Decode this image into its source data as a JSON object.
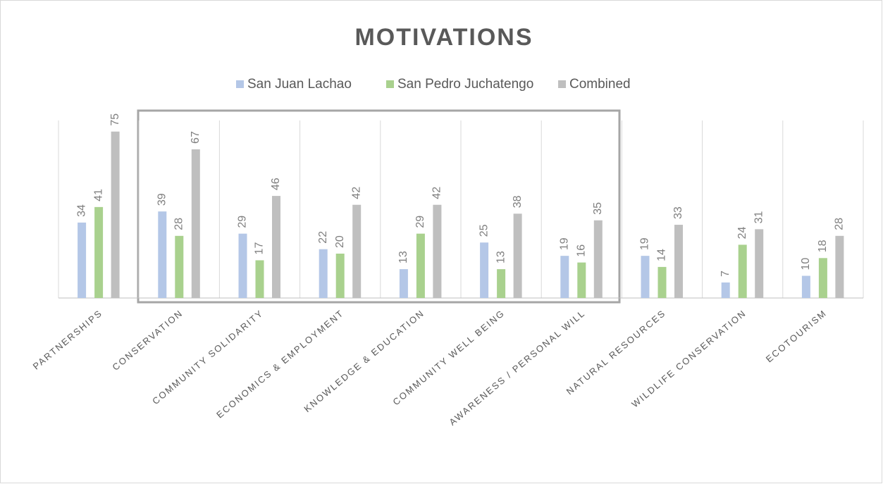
{
  "chart_data": {
    "type": "bar",
    "title": "MOTIVATIONS",
    "categories": [
      "PARTNERSHIPS",
      "CONSERVATION",
      "COMMUNITY SOLIDARITY",
      "ECONOMICS & EMPLOYMENT",
      "KNOWLEDGE & EDUCATION",
      "COMMUNITY WELL BEING",
      "AWARENESS / PERSONAL WILL",
      "NATURAL RESOURCES",
      "WILDLIFE CONSERVATION",
      "ECOTOURISM"
    ],
    "series": [
      {
        "name": "San Juan Lachao",
        "color": "#b4c7e7",
        "values": [
          34,
          39,
          29,
          22,
          13,
          25,
          19,
          19,
          7,
          10
        ]
      },
      {
        "name": "San Pedro Juchatengo",
        "color": "#a9d18e",
        "values": [
          41,
          28,
          17,
          20,
          29,
          13,
          16,
          14,
          24,
          18
        ]
      },
      {
        "name": "Combined",
        "color": "#bfbfbf",
        "values": [
          75,
          67,
          46,
          42,
          42,
          38,
          35,
          33,
          31,
          28
        ]
      }
    ],
    "ylim": [
      0,
      80
    ],
    "legend": "top"
  }
}
